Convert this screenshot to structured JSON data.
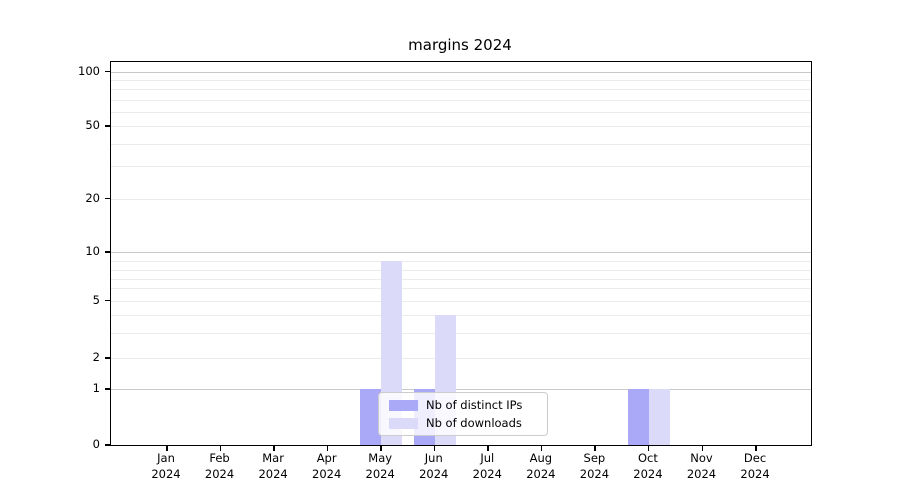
{
  "figure": {
    "title": "margins 2024"
  },
  "chart_data": {
    "type": "bar",
    "title": "margins 2024",
    "xlabel": "",
    "ylabel": "",
    "yscale": "symlog-like (linear 0-1, compressed log 1-100)",
    "ylim": [
      0,
      100
    ],
    "grid": "horizontal, major and minor, full width",
    "legend_position": "lower center-left, inside plot",
    "categories": [
      {
        "month": "Jan",
        "year": "2024"
      },
      {
        "month": "Feb",
        "year": "2024"
      },
      {
        "month": "Mar",
        "year": "2024"
      },
      {
        "month": "Apr",
        "year": "2024"
      },
      {
        "month": "May",
        "year": "2024"
      },
      {
        "month": "Jun",
        "year": "2024"
      },
      {
        "month": "Jul",
        "year": "2024"
      },
      {
        "month": "Aug",
        "year": "2024"
      },
      {
        "month": "Sep",
        "year": "2024"
      },
      {
        "month": "Oct",
        "year": "2024"
      },
      {
        "month": "Nov",
        "year": "2024"
      },
      {
        "month": "Dec",
        "year": "2024"
      }
    ],
    "series": [
      {
        "name": "Nb of distinct IPs",
        "color": "#a9a9f7",
        "values": [
          0,
          0,
          0,
          0,
          1,
          1,
          0,
          0,
          0,
          1,
          0,
          0
        ]
      },
      {
        "name": "Nb of downloads",
        "color": "#dbdbf9",
        "values": [
          0,
          0,
          0,
          0,
          9,
          4,
          0,
          0,
          0,
          1,
          0,
          0
        ]
      }
    ],
    "yticks": [
      0,
      1,
      2,
      5,
      10,
      20,
      50,
      100
    ]
  }
}
